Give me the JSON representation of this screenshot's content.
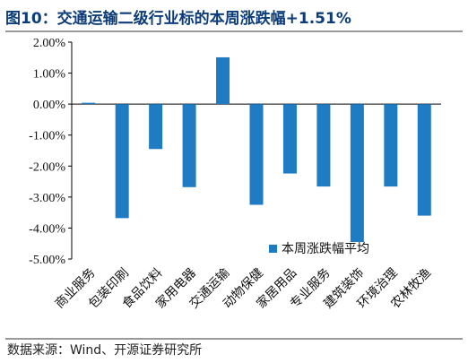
{
  "header": {
    "title": "图10：交通运输二级行业标的本周涨跌幅+1.51%"
  },
  "footer": {
    "source": "数据来源：Wind、开源证券研究所"
  },
  "chart_data": {
    "type": "bar",
    "categories": [
      "商业服务",
      "包装印刷",
      "食品饮料",
      "家用电器",
      "交通运输",
      "动物保健",
      "家居用品",
      "专业服务",
      "建筑装饰",
      "环境治理",
      "农林牧渔"
    ],
    "series": [
      {
        "name": "本周涨跌幅平均",
        "values": [
          0.02,
          -3.68,
          -1.45,
          -2.68,
          1.51,
          -3.25,
          -2.24,
          -2.66,
          -4.45,
          -2.66,
          -3.6
        ]
      }
    ],
    "ylim": [
      -5,
      2
    ],
    "yticks": [
      2,
      1,
      0,
      -1,
      -2,
      -3,
      -4,
      -5
    ],
    "ytick_labels": [
      "2.00%",
      "1.00%",
      "0.00%",
      "-1.00%",
      "-2.00%",
      "-3.00%",
      "-4.00%",
      "-5.00%"
    ],
    "legend_position": "lower-right",
    "bar_color": "#1f7bc2",
    "grid": false
  }
}
